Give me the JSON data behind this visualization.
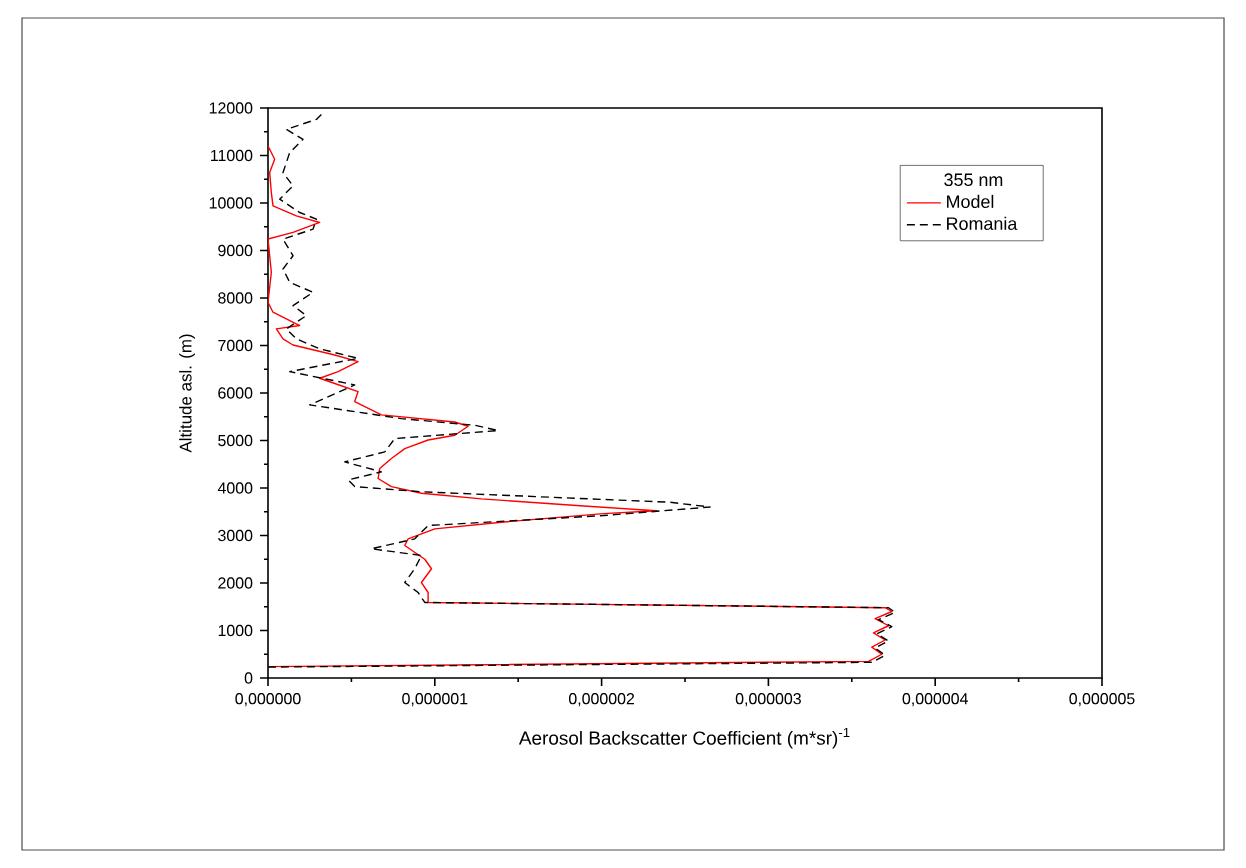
{
  "chart_data": {
    "type": "line",
    "xlabel": "Aerosol Backscatter Coefficient (m*sr)$^{-1}$",
    "ylabel": "Altitude asl. (m)",
    "legend_title": "355 nm",
    "legend": "top right",
    "xlim": [
      0,
      5e-06
    ],
    "ylim": [
      0,
      12000
    ],
    "xticks": [
      {
        "value": 0,
        "label": "0,000000"
      },
      {
        "value": 1e-06,
        "label": "0,000001"
      },
      {
        "value": 2e-06,
        "label": "0,000002"
      },
      {
        "value": 3e-06,
        "label": "0,000003"
      },
      {
        "value": 4e-06,
        "label": "0,000004"
      },
      {
        "value": 5e-06,
        "label": "0,000005"
      }
    ],
    "yticks": [
      0,
      1000,
      2000,
      3000,
      4000,
      5000,
      6000,
      7000,
      8000,
      9000,
      10000,
      11000,
      12000
    ],
    "series": [
      {
        "name": "Model",
        "color": "#ff0000",
        "line_style": "solid",
        "x": [
          0,
          3.6e-06,
          3.68e-06,
          3.62e-06,
          3.7e-06,
          3.63e-06,
          3.72e-06,
          3.64e-06,
          3.74e-06,
          3.7e-06,
          9.6e-07,
          9.6e-07,
          9.2e-07,
          9.8e-07,
          9.4e-07,
          8.2e-07,
          8.4e-07,
          1e-06,
          1.4e-06,
          2.01e-06,
          2.33e-06,
          1.85e-06,
          1.28e-06,
          9.2e-07,
          7.4e-07,
          6.6e-07,
          6.7e-07,
          7.4e-07,
          8.2e-07,
          9.6e-07,
          1.12e-06,
          1.2e-06,
          1.12e-06,
          6.8e-07,
          6e-07,
          5.2e-07,
          5.4e-07,
          4e-07,
          3.1e-07,
          4.2e-07,
          5.4e-07,
          4e-07,
          1.5e-07,
          9e-08,
          5e-08,
          1.9e-07,
          3e-08,
          0,
          2e-08,
          0,
          1.5e-07,
          3.1e-07,
          1.7e-07,
          3e-08,
          2e-08,
          1e-08,
          4e-08,
          0
        ],
        "values": [
          240,
          350,
          500,
          650,
          800,
          950,
          1100,
          1250,
          1400,
          1480,
          1590,
          1800,
          2010,
          2300,
          2500,
          2790,
          2930,
          3140,
          3280,
          3460,
          3520,
          3630,
          3770,
          3890,
          4030,
          4200,
          4410,
          4620,
          4830,
          5010,
          5110,
          5300,
          5390,
          5540,
          5680,
          5820,
          6030,
          6200,
          6310,
          6450,
          6660,
          6800,
          7010,
          7140,
          7350,
          7420,
          7700,
          7910,
          8540,
          9240,
          9380,
          9590,
          9730,
          9940,
          10220,
          10640,
          10920,
          11200
        ]
      },
      {
        "name": "Romania",
        "color": "#000000",
        "line_style": "dashed",
        "x": [
          0,
          3.62e-06,
          3.7e-06,
          3.64e-06,
          3.72e-06,
          3.65e-06,
          3.74e-06,
          3.66e-06,
          3.76e-06,
          3.72e-06,
          9.4e-07,
          9e-07,
          8.2e-07,
          8.8e-07,
          9.2e-07,
          6.2e-07,
          8.8e-07,
          9.6e-07,
          2.01e-06,
          2.65e-06,
          2.41e-06,
          9.2e-07,
          5.2e-07,
          4.8e-07,
          6.8e-07,
          4.6e-07,
          7e-07,
          7.6e-07,
          1.38e-06,
          1.24e-06,
          8e-07,
          2.5e-07,
          5.2e-07,
          1.3e-07,
          5.4e-07,
          3.1e-07,
          1.7e-07,
          1.1e-07,
          2.3e-07,
          1.5e-07,
          2.7e-07,
          1.3e-07,
          9e-08,
          1.5e-07,
          9e-08,
          2.7e-07,
          2.9e-07,
          1.9e-07,
          7e-08,
          1.5e-07,
          9e-08,
          1.3e-07,
          2.1e-07,
          1.1e-07,
          2.9e-07,
          3.3e-07
        ],
        "values": [
          230,
          330,
          480,
          630,
          780,
          930,
          1080,
          1230,
          1380,
          1480,
          1590,
          1800,
          2010,
          2300,
          2580,
          2720,
          2930,
          3210,
          3420,
          3600,
          3700,
          3920,
          4030,
          4170,
          4340,
          4550,
          4760,
          5040,
          5210,
          5320,
          5460,
          5750,
          6170,
          6450,
          6730,
          6930,
          7140,
          7350,
          7630,
          7840,
          8120,
          8330,
          8610,
          8890,
          9240,
          9450,
          9660,
          9800,
          10080,
          10360,
          10640,
          11060,
          11340,
          11550,
          11760,
          11900
        ]
      }
    ]
  }
}
